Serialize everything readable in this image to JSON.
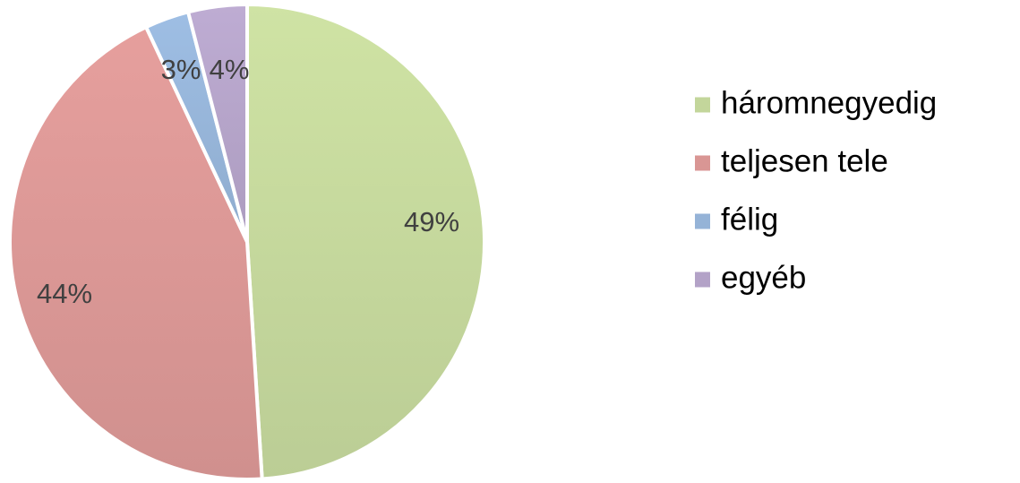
{
  "chart_data": {
    "type": "pie",
    "title": "",
    "categories": [
      "háromnegyedig",
      "teljesen tele",
      "félig",
      "egyéb"
    ],
    "values": [
      49,
      44,
      3,
      4
    ],
    "labels": [
      "49%",
      "44%",
      "3%",
      "4%"
    ],
    "unit": "%",
    "legend_position": "right",
    "colors": [
      "#c3d69b",
      "#d99694",
      "#95b3d7",
      "#b3a2c7"
    ]
  }
}
